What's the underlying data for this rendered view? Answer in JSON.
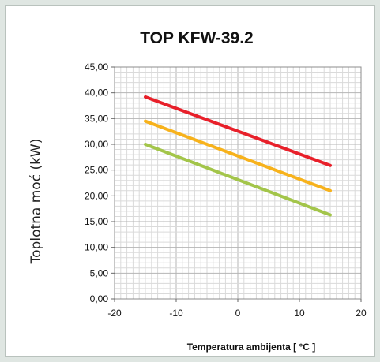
{
  "chart_data": {
    "type": "line",
    "title": "TOP KFW-39.2",
    "xlabel": "Temperatura ambijenta   [ °C ]",
    "ylabel": "Toplotna moć (kW)",
    "xlim": [
      -20,
      20
    ],
    "ylim": [
      0,
      45
    ],
    "xticks": [
      "-20",
      "-10",
      "0",
      "10",
      "20"
    ],
    "yticks": [
      "0,00",
      "5,00",
      "10,00",
      "15,00",
      "20,00",
      "25,00",
      "30,00",
      "35,00",
      "40,00",
      "45,00"
    ],
    "grid": true,
    "series": [
      {
        "color": "#e8202a",
        "x": [
          -15,
          15
        ],
        "y": [
          39.2,
          25.9
        ]
      },
      {
        "color": "#f7b21c",
        "x": [
          -15,
          15
        ],
        "y": [
          34.5,
          21.0
        ]
      },
      {
        "color": "#a3c54a",
        "x": [
          -15,
          15
        ],
        "y": [
          30.0,
          16.3
        ]
      }
    ]
  }
}
